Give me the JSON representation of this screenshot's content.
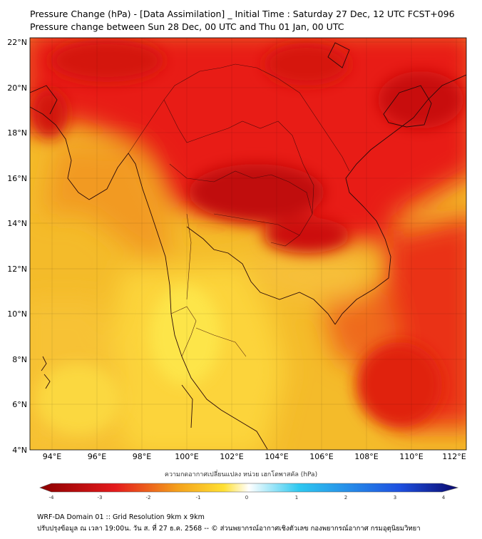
{
  "title": {
    "line1": "Pressure Change (hPa) - [Data Assimilation] _ Initial Time : Saturday 27 Dec, 12 UTC FCST+096",
    "line2": "Pressure change between Sun 28 Dec, 00 UTC and Thu 01 Jan, 00 UTC"
  },
  "map": {
    "lat_labels": [
      "22°N",
      "20°N",
      "18°N",
      "16°N",
      "14°N",
      "12°N",
      "10°N",
      "8°N",
      "6°N",
      "4°N"
    ],
    "lon_labels": [
      "94°E",
      "96°E",
      "98°E",
      "100°E",
      "102°E",
      "104°E",
      "106°E",
      "108°E",
      "110°E",
      "112°E"
    ]
  },
  "colorbar": {
    "title": "ความกดอากาศเปลี่ยนแปลง หน่วย เฮกโตพาสคัล (hPa)",
    "range": [
      -4,
      4
    ],
    "tick_labels": [
      "-4",
      "-3",
      "-2",
      "-1",
      "0",
      "1",
      "2",
      "3",
      "4"
    ],
    "colors": {
      "deep_red": "#8b0000",
      "red": "#e41a1c",
      "orange": "#f4a11c",
      "yellow": "#ffe033",
      "white": "#ffffff",
      "cyan": "#2ec8f0",
      "blue": "#1e50e0",
      "navy": "#0a0a6e"
    }
  },
  "footer": {
    "line1": "WRF-DA Domain 01 :: Grid Resolution 9km x 9km",
    "line2": "ปรับปรุงข้อมูล ณ เวลา 19:00น. วัน ส. ที่ 27 ธ.ค. 2568 -- © ส่วนพยากรณ์อากาศเชิงตัวเลข กองพยากรณ์อากาศ กรมอุตุนิยมวิทยา"
  }
}
